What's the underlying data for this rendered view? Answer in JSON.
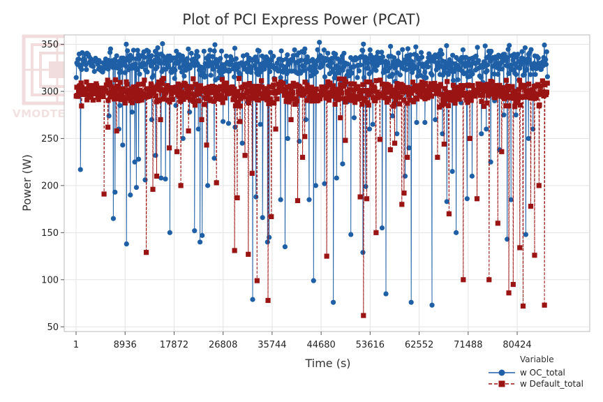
{
  "chart_data": {
    "type": "line",
    "title": "Plot of PCI Express Power (PCAT)",
    "xlabel": "Time (s)",
    "ylabel": "Power (W)",
    "xlim": [
      1,
      92000
    ],
    "ylim": [
      45,
      360
    ],
    "x_ticks": [
      1,
      8936,
      17872,
      26808,
      35744,
      44680,
      53616,
      62552,
      71488,
      80424
    ],
    "x_tick_labels": [
      "1",
      "8936",
      "17872",
      "26808",
      "35744",
      "44680",
      "53616",
      "62552",
      "71488",
      "80424"
    ],
    "y_ticks": [
      50,
      100,
      150,
      200,
      250,
      300,
      350
    ],
    "y_tick_labels": [
      "50",
      "100",
      "150",
      "200",
      "250",
      "300",
      "350"
    ],
    "grid": true,
    "legend": {
      "title": "Variable",
      "position": "bottom-right"
    },
    "series": [
      {
        "name": "w OC_total",
        "color": "#1f5fa6",
        "marker": "circle",
        "line_style": "solid",
        "typical_range": [
          305,
          355
        ],
        "dips": [
          [
            800,
            217
          ],
          [
            6000,
            274
          ],
          [
            6800,
            165
          ],
          [
            7100,
            193
          ],
          [
            7800,
            260
          ],
          [
            8000,
            285
          ],
          [
            8500,
            243
          ],
          [
            9200,
            138
          ],
          [
            9900,
            190
          ],
          [
            10200,
            278
          ],
          [
            10700,
            225
          ],
          [
            11000,
            198
          ],
          [
            11400,
            228
          ],
          [
            12600,
            206
          ],
          [
            13800,
            270
          ],
          [
            14500,
            232
          ],
          [
            15500,
            208
          ],
          [
            16300,
            207
          ],
          [
            17100,
            150
          ],
          [
            18200,
            285
          ],
          [
            19500,
            250
          ],
          [
            20700,
            278
          ],
          [
            21600,
            152
          ],
          [
            22300,
            260
          ],
          [
            22600,
            140
          ],
          [
            23000,
            147
          ],
          [
            24000,
            200
          ],
          [
            25200,
            229
          ],
          [
            26800,
            268
          ],
          [
            27800,
            266
          ],
          [
            29000,
            262
          ],
          [
            30300,
            245
          ],
          [
            31300,
            288
          ],
          [
            32200,
            79
          ],
          [
            32800,
            188
          ],
          [
            33600,
            265
          ],
          [
            34000,
            166
          ],
          [
            34900,
            140
          ],
          [
            35200,
            145
          ],
          [
            37300,
            185
          ],
          [
            38100,
            135
          ],
          [
            38600,
            250
          ],
          [
            40700,
            247
          ],
          [
            41900,
            270
          ],
          [
            42500,
            185
          ],
          [
            43300,
            99
          ],
          [
            43700,
            200
          ],
          [
            45300,
            202
          ],
          [
            46900,
            76
          ],
          [
            47500,
            208
          ],
          [
            48600,
            223
          ],
          [
            49500,
            289
          ],
          [
            50100,
            148
          ],
          [
            50700,
            272
          ],
          [
            52300,
            129
          ],
          [
            52800,
            199
          ],
          [
            53500,
            260
          ],
          [
            54100,
            265
          ],
          [
            55800,
            155
          ],
          [
            56500,
            85
          ],
          [
            57700,
            274
          ],
          [
            58500,
            255
          ],
          [
            60000,
            210
          ],
          [
            60700,
            240
          ],
          [
            61100,
            76
          ],
          [
            62100,
            267
          ],
          [
            63600,
            267
          ],
          [
            64900,
            73
          ],
          [
            65500,
            270
          ],
          [
            66800,
            255
          ],
          [
            67600,
            183
          ],
          [
            68600,
            215
          ],
          [
            69300,
            150
          ],
          [
            70200,
            288
          ],
          [
            71300,
            186
          ],
          [
            72200,
            210
          ],
          [
            73900,
            255
          ],
          [
            74800,
            260
          ],
          [
            75600,
            225
          ],
          [
            76300,
            290
          ],
          [
            77200,
            238
          ],
          [
            78000,
            275
          ],
          [
            78600,
            143
          ],
          [
            79300,
            185
          ],
          [
            80200,
            275
          ],
          [
            82000,
            148
          ],
          [
            82500,
            250
          ],
          [
            83300,
            260
          ]
        ]
      },
      {
        "name": "w Default_total",
        "color": "#9b1414",
        "marker": "square",
        "line_style": "dashed",
        "typical_range": [
          280,
          318
        ],
        "dips": [
          [
            5100,
            191
          ],
          [
            5800,
            262
          ],
          [
            7400,
            258
          ],
          [
            12800,
            129
          ],
          [
            14000,
            196
          ],
          [
            14700,
            210
          ],
          [
            15400,
            270
          ],
          [
            17000,
            240
          ],
          [
            18400,
            236
          ],
          [
            19100,
            200
          ],
          [
            20500,
            258
          ],
          [
            22900,
            270
          ],
          [
            23800,
            243
          ],
          [
            25600,
            203
          ],
          [
            28900,
            131
          ],
          [
            29400,
            187
          ],
          [
            29900,
            268
          ],
          [
            30800,
            232
          ],
          [
            31400,
            127
          ],
          [
            32100,
            213
          ],
          [
            33000,
            99
          ],
          [
            35000,
            78
          ],
          [
            35600,
            167
          ],
          [
            36400,
            260
          ],
          [
            39200,
            270
          ],
          [
            40400,
            184
          ],
          [
            41300,
            230
          ],
          [
            41700,
            252
          ],
          [
            45700,
            125
          ],
          [
            48200,
            272
          ],
          [
            49100,
            248
          ],
          [
            51800,
            188
          ],
          [
            52400,
            62
          ],
          [
            53000,
            186
          ],
          [
            54700,
            150
          ],
          [
            55400,
            249
          ],
          [
            57300,
            238
          ],
          [
            58100,
            245
          ],
          [
            59400,
            180
          ],
          [
            59800,
            192
          ],
          [
            60400,
            230
          ],
          [
            65900,
            230
          ],
          [
            67100,
            244
          ],
          [
            68000,
            170
          ],
          [
            70600,
            100
          ],
          [
            71800,
            250
          ],
          [
            73100,
            186
          ],
          [
            75300,
            100
          ],
          [
            76900,
            160
          ],
          [
            77600,
            236
          ],
          [
            78900,
            86
          ],
          [
            79700,
            95
          ],
          [
            80900,
            134
          ],
          [
            81500,
            72
          ],
          [
            82900,
            178
          ],
          [
            83600,
            126
          ],
          [
            84400,
            200
          ],
          [
            85400,
            73
          ]
        ]
      }
    ]
  },
  "watermark": "VMODTECH.COM",
  "legend_labels": {
    "title": "Variable",
    "series0": "w OC_total",
    "series1": "w Default_total"
  }
}
